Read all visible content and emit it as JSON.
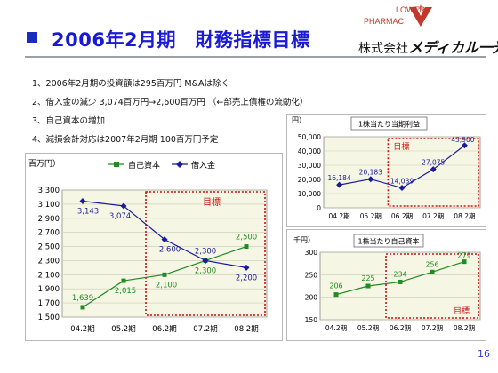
{
  "header": {
    "title": "2006年2月期　財務指標目標",
    "company_prefix": "株式会社",
    "company_brand": "メディカル一光",
    "logo_top": "LOWER",
    "logo_mid": "PHARMAC"
  },
  "bullets": [
    "1、2006年2月期の投資額は295百万円  M&Aは除く",
    "2、借入金の減少   3,074百万円→2,600百万円  （←部売上債権の流動化）",
    "3、自己資本の増加",
    "4、減損会計対応は2007年2月期  100百万円予定"
  ],
  "page_number": "16",
  "colors": {
    "equity": "#1e8c1e",
    "debt": "#1a1a9c",
    "target": "#cc1111",
    "plot_bg": "#f6f6e4",
    "title": "#1a1ad6"
  },
  "chart_data": [
    {
      "type": "line",
      "unit_label": "百万円）",
      "categories": [
        "04.2期",
        "05.2期",
        "06.2期",
        "07.2期",
        "08.2期"
      ],
      "series": [
        {
          "name": "自己資本",
          "values": [
            1639,
            2015,
            2100,
            2300,
            2500
          ],
          "labels": [
            "1,639",
            "2,015",
            "2,100",
            "2,300",
            "2,500"
          ]
        },
        {
          "name": "借入金",
          "values": [
            3143,
            3074,
            2600,
            2300,
            2200
          ],
          "labels": [
            "3,143",
            "3,074",
            "2,600",
            "2,300",
            "2,200"
          ]
        }
      ],
      "ylim": [
        1500,
        3300
      ],
      "yticks": [
        1500,
        1700,
        1900,
        2100,
        2300,
        2500,
        2700,
        2900,
        3100,
        3300
      ],
      "ytick_labels": [
        "1,500",
        "1,700",
        "1,900",
        "2,100",
        "2,300",
        "2,500",
        "2,700",
        "2,900",
        "3,100",
        "3,300"
      ],
      "legend_position": "top",
      "annotation": "目標",
      "target_from_category": "06.2期"
    },
    {
      "type": "line",
      "title": "1株当たり当期利益",
      "unit_label": "円）",
      "categories": [
        "04.2期",
        "05.2期",
        "06.2期",
        "07.2期",
        "08.2期"
      ],
      "series": [
        {
          "name": "",
          "values": [
            16184,
            20183,
            14039,
            27075,
            43900
          ],
          "labels": [
            "16,184",
            "20,183",
            "14,039",
            "27,075",
            "43,900"
          ]
        }
      ],
      "ylim": [
        0,
        50000
      ],
      "yticks": [
        0,
        10000,
        20000,
        30000,
        40000,
        50000
      ],
      "ytick_labels": [
        "0",
        "10,000",
        "20,000",
        "30,000",
        "40,000",
        "50,000"
      ],
      "annotation": "目標",
      "target_from_category": "06.2期"
    },
    {
      "type": "line",
      "title": "1株当たり自己資本",
      "unit_label": "千円）",
      "categories": [
        "04.2期",
        "05.2期",
        "06.2期",
        "07.2期",
        "08.2期"
      ],
      "series": [
        {
          "name": "",
          "values": [
            206,
            225,
            234,
            256,
            279
          ],
          "labels": [
            "206",
            "225",
            "234",
            "256",
            "279"
          ]
        }
      ],
      "ylim": [
        150,
        300
      ],
      "yticks": [
        150,
        200,
        250,
        300
      ],
      "ytick_labels": [
        "150",
        "200",
        "250",
        "300"
      ],
      "annotation": "目標",
      "target_from_category": "06.2期"
    }
  ]
}
